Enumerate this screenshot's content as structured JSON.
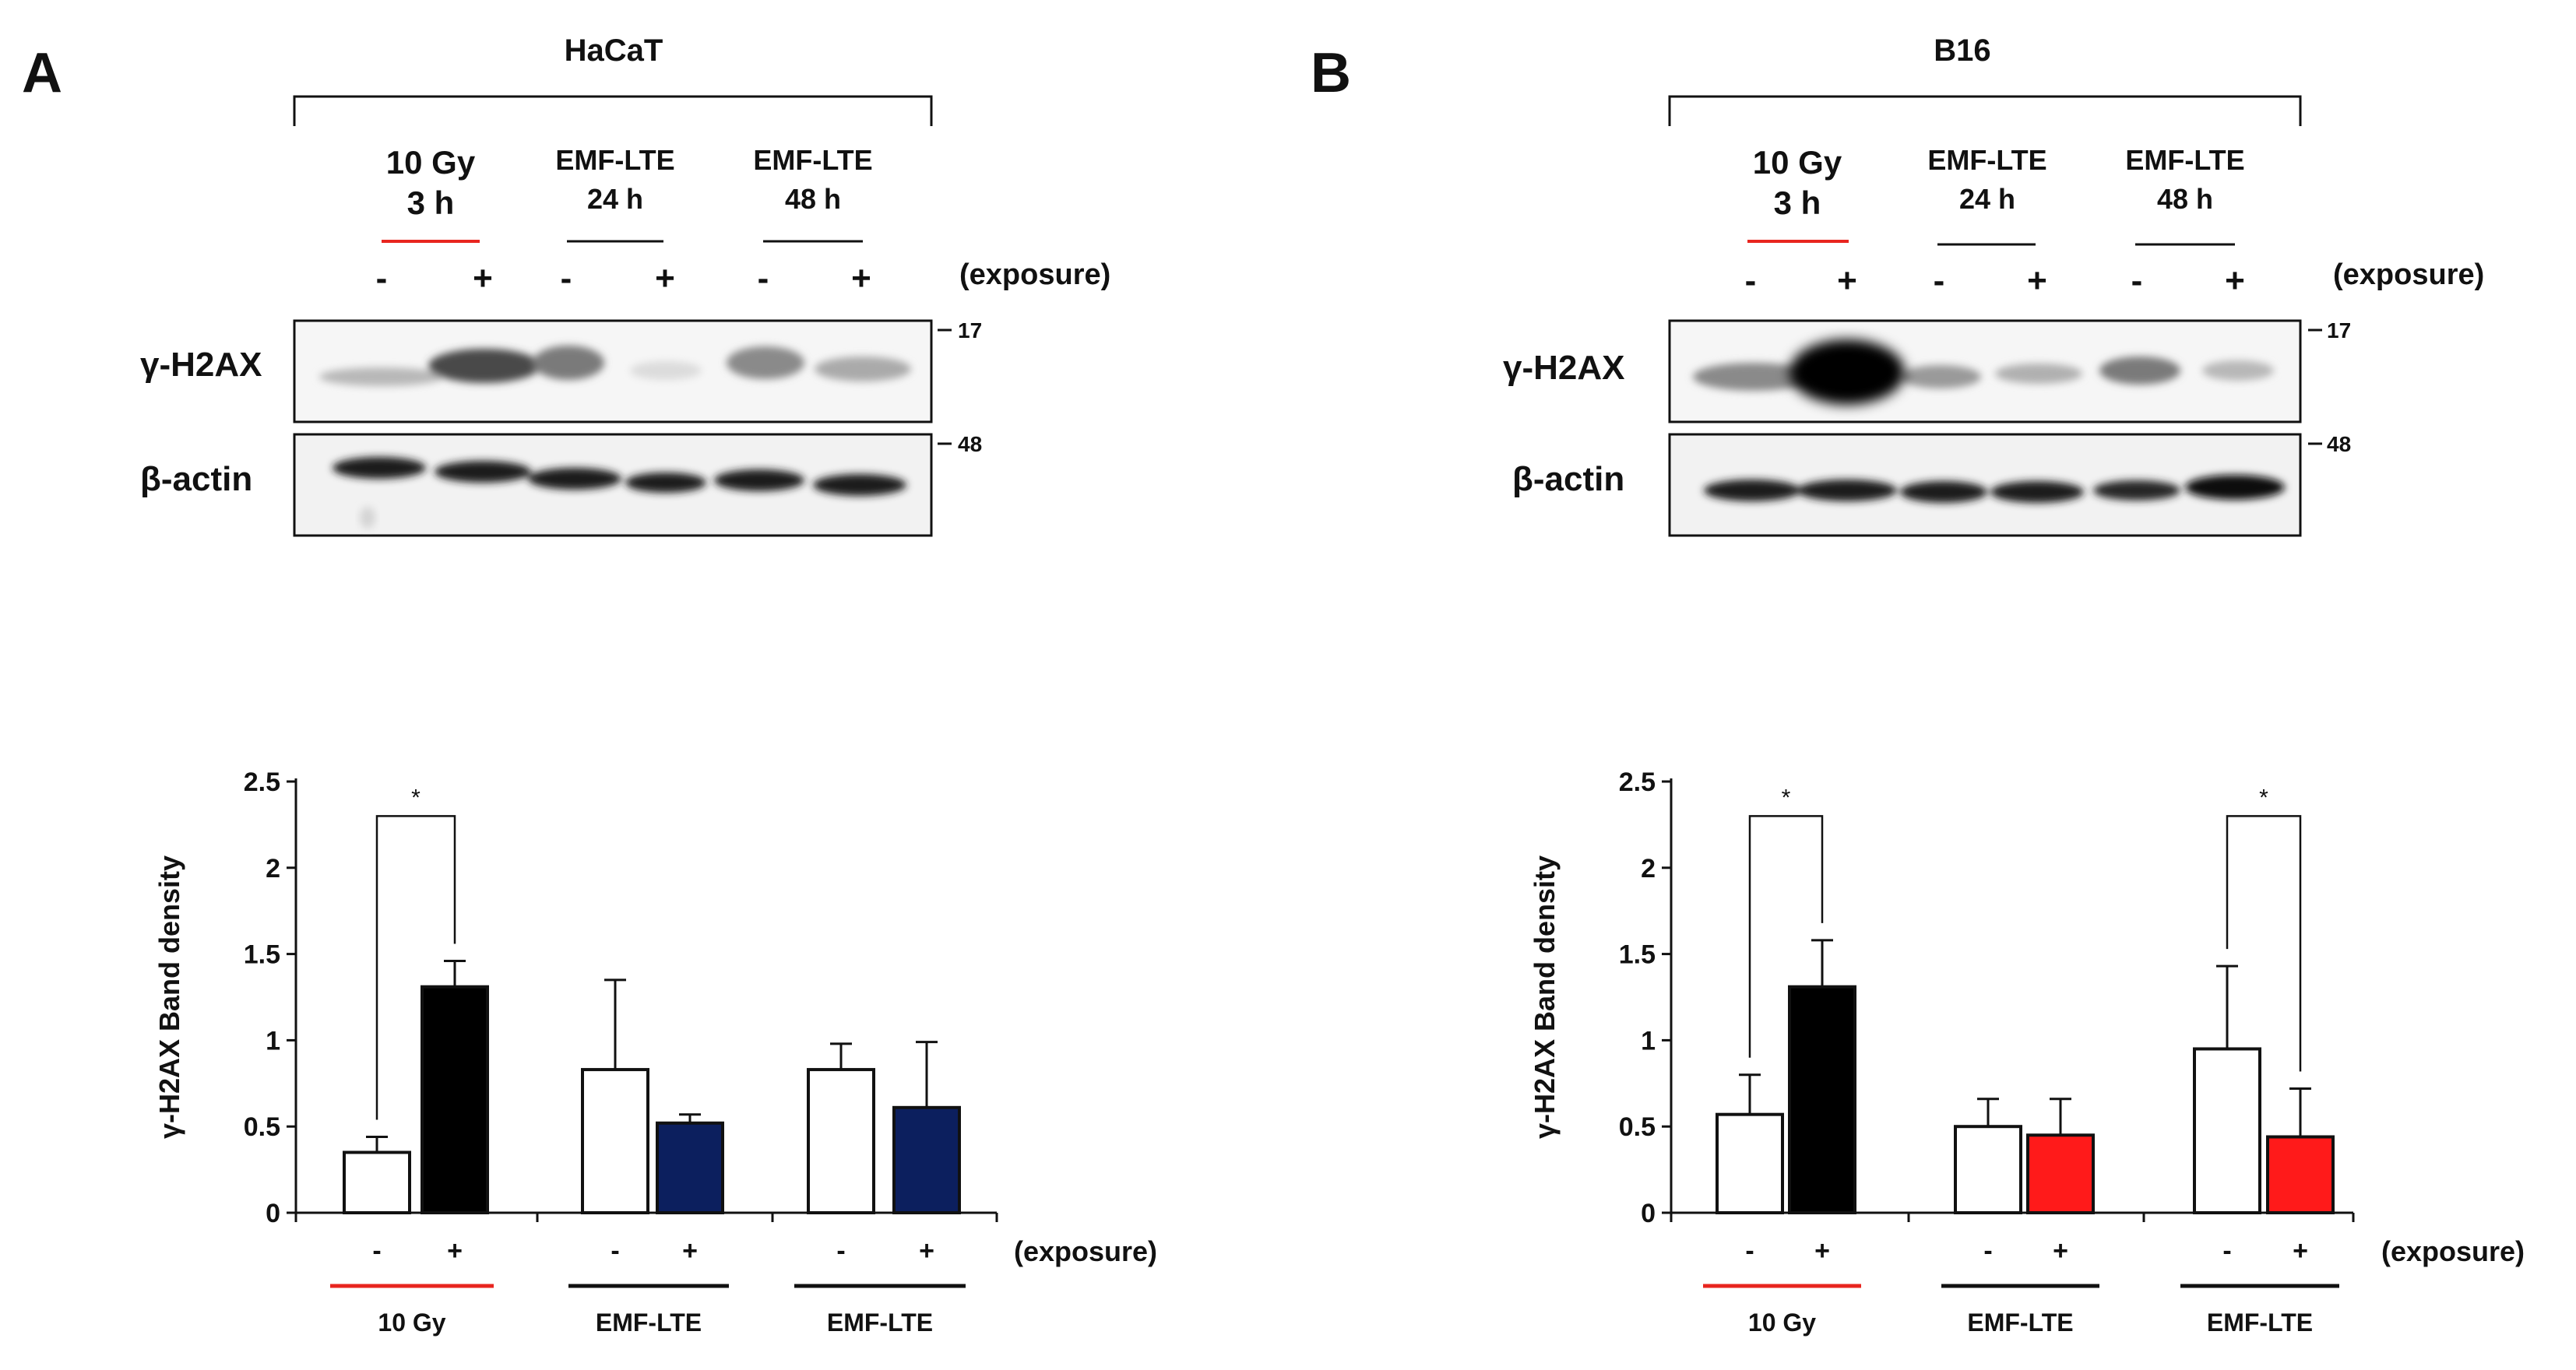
{
  "panels": [
    {
      "letter": "A",
      "cell_line": "HaCaT",
      "conditions": [
        {
          "line1": "10 Gy",
          "line2": "3 h",
          "underline_color": "#e8251f"
        },
        {
          "line1": "EMF-LTE",
          "line2": "24 h",
          "underline_color": "#111111"
        },
        {
          "line1": "EMF-LTE",
          "line2": "48 h",
          "underline_color": "#111111"
        }
      ],
      "signs": [
        "-",
        "+",
        "-",
        "+",
        "-",
        "+"
      ],
      "exposure_label": "(exposure)",
      "blot_labels": [
        "γ-H2AX",
        "β-actin"
      ],
      "markers": [
        "17",
        "48"
      ],
      "chart_data": {
        "type": "bar",
        "ylabel": "γ-H2AX  Band density",
        "ylim": [
          0,
          2.5
        ],
        "yticks": [
          "0",
          "0.5",
          "1",
          "1.5",
          "2",
          "2.5"
        ],
        "bars": [
          {
            "group": "10 Gy",
            "exposure": "-",
            "value": 0.35,
            "error": 0.09,
            "color": "#ffffff"
          },
          {
            "group": "10 Gy",
            "exposure": "+",
            "value": 1.31,
            "error": 0.15,
            "color": "#000000"
          },
          {
            "group": "EMF-LTE",
            "exposure": "-",
            "value": 0.83,
            "error": 0.52,
            "color": "#ffffff"
          },
          {
            "group": "EMF-LTE",
            "exposure": "+",
            "value": 0.52,
            "error": 0.05,
            "color": "#0c1f5e"
          },
          {
            "group": "EMF-LTE",
            "exposure": "-",
            "value": 0.83,
            "error": 0.15,
            "color": "#ffffff"
          },
          {
            "group": "EMF-LTE",
            "exposure": "+",
            "value": 0.61,
            "error": 0.38,
            "color": "#0c1f5e"
          }
        ],
        "significance": [
          {
            "pair": [
              0,
              1
            ],
            "label": "*"
          }
        ],
        "x_signs": [
          "-",
          "+",
          "-",
          "+",
          "-",
          "+"
        ],
        "exposure_label": "(exposure)",
        "group_labels": [
          {
            "text": "10 Gy",
            "color": "#e8251f"
          },
          {
            "text": "EMF-LTE",
            "color": "#111111"
          },
          {
            "text": "EMF-LTE",
            "color": "#111111"
          }
        ]
      }
    },
    {
      "letter": "B",
      "cell_line": "B16",
      "conditions": [
        {
          "line1": "10 Gy",
          "line2": "3 h",
          "underline_color": "#e8251f"
        },
        {
          "line1": "EMF-LTE",
          "line2": "24 h",
          "underline_color": "#111111"
        },
        {
          "line1": "EMF-LTE",
          "line2": "48 h",
          "underline_color": "#111111"
        }
      ],
      "signs": [
        "-",
        "+",
        "-",
        "+",
        "-",
        "+"
      ],
      "exposure_label": "(exposure)",
      "blot_labels": [
        "γ-H2AX",
        "β-actin"
      ],
      "markers": [
        "17",
        "48"
      ],
      "chart_data": {
        "type": "bar",
        "ylabel": "γ-H2AX  Band density",
        "ylim": [
          0,
          2.5
        ],
        "yticks": [
          "0",
          "0.5",
          "1",
          "1.5",
          "2",
          "2.5"
        ],
        "bars": [
          {
            "group": "10 Gy",
            "exposure": "-",
            "value": 0.57,
            "error": 0.23,
            "color": "#ffffff"
          },
          {
            "group": "10 Gy",
            "exposure": "+",
            "value": 1.31,
            "error": 0.27,
            "color": "#000000"
          },
          {
            "group": "EMF-LTE",
            "exposure": "-",
            "value": 0.5,
            "error": 0.16,
            "color": "#ffffff"
          },
          {
            "group": "EMF-LTE",
            "exposure": "+",
            "value": 0.45,
            "error": 0.21,
            "color": "#ff1a1a"
          },
          {
            "group": "EMF-LTE",
            "exposure": "-",
            "value": 0.95,
            "error": 0.48,
            "color": "#ffffff"
          },
          {
            "group": "EMF-LTE",
            "exposure": "+",
            "value": 0.44,
            "error": 0.28,
            "color": "#ff1a1a"
          }
        ],
        "significance": [
          {
            "pair": [
              0,
              1
            ],
            "label": "*"
          },
          {
            "pair": [
              4,
              5
            ],
            "label": "*"
          }
        ],
        "x_signs": [
          "-",
          "+",
          "-",
          "+",
          "-",
          "+"
        ],
        "exposure_label": "(exposure)",
        "group_labels": [
          {
            "text": "10 Gy",
            "color": "#e8251f"
          },
          {
            "text": "EMF-LTE",
            "color": "#111111"
          },
          {
            "text": "EMF-LTE",
            "color": "#111111"
          }
        ]
      }
    }
  ]
}
